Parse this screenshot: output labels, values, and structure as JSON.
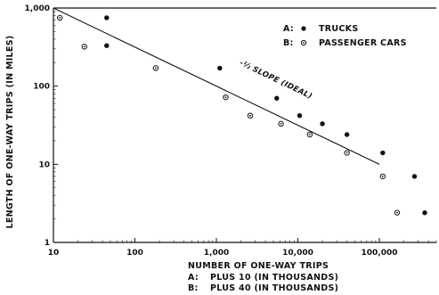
{
  "chart_data": {
    "type": "scatter",
    "x_scale": "log",
    "y_scale": "log",
    "xlim": [
      10,
      500000
    ],
    "ylim": [
      1,
      1000
    ],
    "x_ticks": [
      {
        "value": 10,
        "label": "10"
      },
      {
        "value": 100,
        "label": "100"
      },
      {
        "value": 1000,
        "label": "1,000"
      },
      {
        "value": 10000,
        "label": "10,000"
      },
      {
        "value": 100000,
        "label": "100,000"
      }
    ],
    "y_ticks": [
      {
        "value": 1,
        "label": "1"
      },
      {
        "value": 10,
        "label": "10"
      },
      {
        "value": 100,
        "label": "100"
      },
      {
        "value": 1000,
        "label": "1,000"
      }
    ],
    "xlabel": "NUMBER OF ONE-WAY TRIPS",
    "ylabel": "LENGTH OF ONE-WAY TRIPS (IN MILES)",
    "grid": false,
    "legend_position": "top-right",
    "legend": [
      {
        "key": "A:",
        "label": "TRUCKS",
        "marker": "filled-circle"
      },
      {
        "key": "B:",
        "label": "PASSENGER CARS",
        "marker": "open-circle"
      }
    ],
    "notes": [
      {
        "key": "A:",
        "text": "PLUS 10 (IN THOUSANDS)"
      },
      {
        "key": "B:",
        "text": "PLUS 40 (IN THOUSANDS)"
      }
    ],
    "reference_line": {
      "label": "-½ SLOPE (IDEAL)",
      "from": [
        10,
        1000
      ],
      "to": [
        100000,
        10
      ]
    },
    "series": [
      {
        "name": "TRUCKS",
        "marker": "filled-circle",
        "points": [
          [
            45,
            750
          ],
          [
            45,
            330
          ],
          [
            1100,
            170
          ],
          [
            5500,
            70
          ],
          [
            10500,
            42
          ],
          [
            20000,
            33
          ],
          [
            40000,
            24
          ],
          [
            110000,
            14
          ],
          [
            270000,
            7
          ],
          [
            360000,
            2.4
          ]
        ]
      },
      {
        "name": "PASSENGER CARS",
        "marker": "open-circle",
        "points": [
          [
            12,
            750
          ],
          [
            24,
            320
          ],
          [
            180,
            170
          ],
          [
            1300,
            72
          ],
          [
            2600,
            42
          ],
          [
            6200,
            33
          ],
          [
            14000,
            24
          ],
          [
            40000,
            14
          ],
          [
            110000,
            7
          ],
          [
            165000,
            2.4
          ]
        ]
      }
    ]
  }
}
